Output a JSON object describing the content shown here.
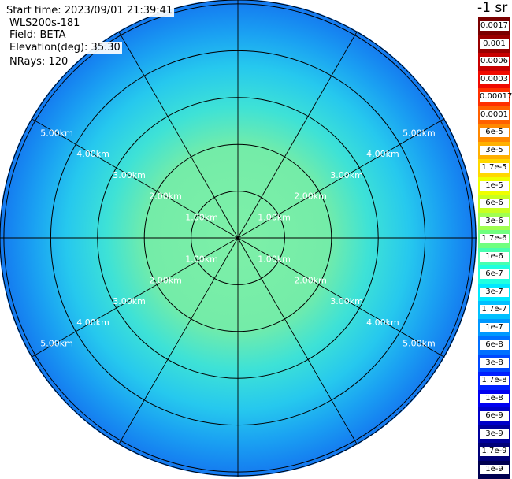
{
  "info": {
    "start_time": "Start time: 2023/09/01 21:39:41",
    "instrument": "WLS200s-181",
    "field": "Field: BETA",
    "elevation": "Elevation(deg): 35.30",
    "nrays": "NRays: 120"
  },
  "colorbar": {
    "title": "-1 sr",
    "labels": [
      "0.0017",
      "0.001",
      "0.0006",
      "0.0003",
      "0.00017",
      "0.0001",
      "6e-5",
      "3e-5",
      "1.7e-5",
      "1e-5",
      "6e-6",
      "3e-6",
      "1.7e-6",
      "1e-6",
      "6e-7",
      "3e-7",
      "1.7e-7",
      "1e-7",
      "6e-8",
      "3e-8",
      "1.7e-8",
      "1e-8",
      "6e-9",
      "3e-9",
      "1.7e-9",
      "1e-9"
    ],
    "colors": [
      "#7a0000",
      "#990000",
      "#c80000",
      "#f00a00",
      "#ff3000",
      "#ff6000",
      "#ff8800",
      "#ffb000",
      "#ffd800",
      "#f0ff00",
      "#c8ff20",
      "#a0ff50",
      "#70ff80",
      "#48ffb0",
      "#20ffe0",
      "#00e8ff",
      "#00c0ff",
      "#0098ff",
      "#0070ff",
      "#0048ff",
      "#0020ff",
      "#0000f0",
      "#0000c8",
      "#00009c",
      "#000078",
      "#000050"
    ]
  },
  "chart_data": {
    "type": "ppi",
    "field": "BETA",
    "elevation_deg": 35.3,
    "nrays": 120,
    "range_ring_labels": [
      "1.00km",
      "2.00km",
      "3.00km",
      "4.00km",
      "5.00km"
    ],
    "ring_ranges_km": [
      1,
      2,
      3,
      4,
      5
    ],
    "max_range_km": 5.1,
    "radial_spacing_deg": 30,
    "grid": true
  }
}
